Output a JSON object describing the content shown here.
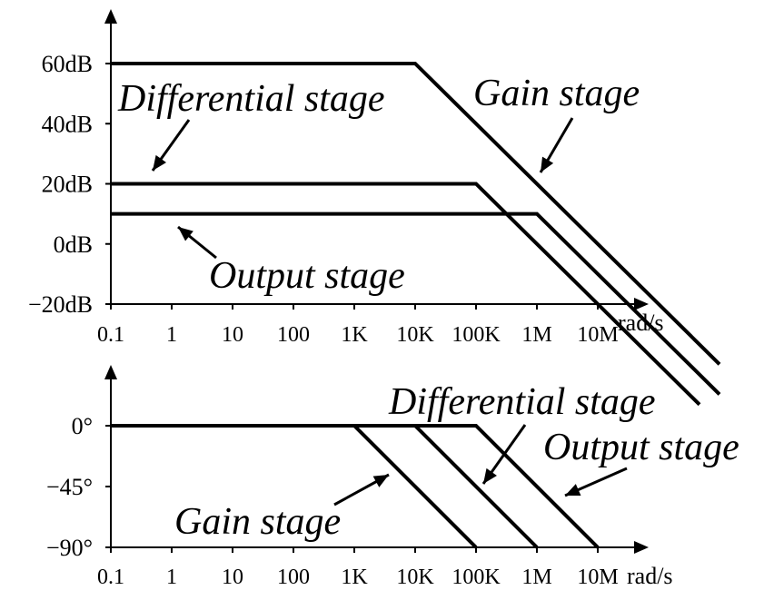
{
  "chart_data": [
    {
      "type": "line",
      "x_scale": "log",
      "x_ticks": [
        "0.1",
        "1",
        "10",
        "100",
        "1K",
        "10K",
        "100K",
        "1M",
        "10M"
      ],
      "x_tick_values": [
        0.1,
        1,
        10,
        100,
        1000,
        10000,
        100000,
        1000000,
        10000000
      ],
      "x_unit": "rad/s",
      "y_ticks": [
        "60dB",
        "40dB",
        "20dB",
        "0dB",
        "−20dB"
      ],
      "y_tick_values": [
        60,
        40,
        20,
        0,
        -20
      ],
      "ylim": [
        -20,
        60
      ],
      "series": [
        {
          "name": "Gain stage",
          "points": [
            [
              0.1,
              60
            ],
            [
              10000,
              60
            ],
            [
              1000000000,
              -40
            ]
          ]
        },
        {
          "name": "Differential stage",
          "points": [
            [
              0.1,
              20
            ],
            [
              100000,
              20
            ],
            [
              1000000000,
              -60
            ]
          ]
        },
        {
          "name": "Output stage",
          "points": [
            [
              0.1,
              10
            ],
            [
              1000000,
              10
            ],
            [
              1000000000,
              -50
            ]
          ]
        }
      ]
    },
    {
      "type": "line",
      "x_scale": "log",
      "x_ticks": [
        "0.1",
        "1",
        "10",
        "100",
        "1K",
        "10K",
        "100K",
        "1M",
        "10M"
      ],
      "x_tick_values": [
        0.1,
        1,
        10,
        100,
        1000,
        10000,
        100000,
        1000000,
        10000000
      ],
      "x_unit": "rad/s",
      "y_ticks": [
        "0°",
        "−45°",
        "−90°"
      ],
      "y_tick_values": [
        0,
        -45,
        -90
      ],
      "ylim": [
        -90,
        0
      ],
      "series": [
        {
          "name": "Gain stage",
          "points": [
            [
              0.1,
              0
            ],
            [
              1000,
              0
            ],
            [
              100000,
              -90
            ]
          ]
        },
        {
          "name": "Differential stage",
          "points": [
            [
              0.1,
              0
            ],
            [
              10000,
              0
            ],
            [
              1000000,
              -90
            ]
          ]
        },
        {
          "name": "Output stage",
          "points": [
            [
              0.1,
              0
            ],
            [
              100000,
              0
            ],
            [
              10000000,
              -90
            ]
          ]
        }
      ]
    }
  ],
  "annotations": {
    "top": [
      "Differential stage",
      "Gain stage",
      "Output stage"
    ],
    "bottom": [
      "Differential stage",
      "Output stage",
      "Gain stage"
    ]
  },
  "colors": {
    "ink": "#000000",
    "background": "#ffffff"
  }
}
